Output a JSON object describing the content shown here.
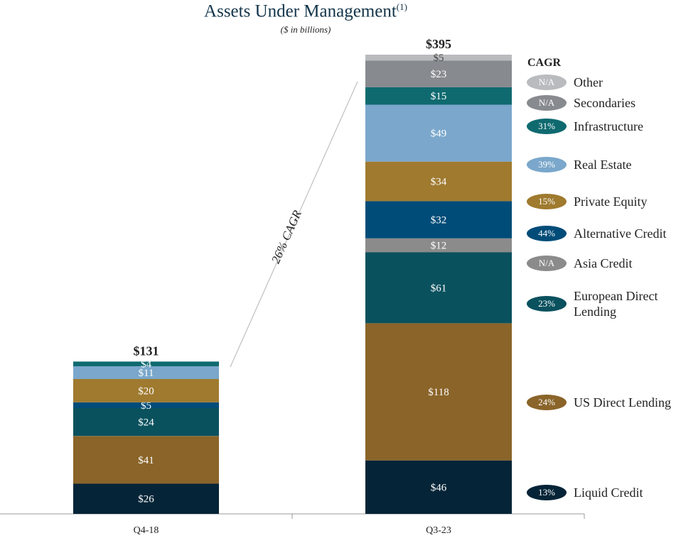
{
  "header": {
    "title": "Assets Under Management",
    "title_sup": "(1)",
    "subtitle": "($ in billions)"
  },
  "legend": {
    "header": "CAGR",
    "items": [
      {
        "name": "Other",
        "cagr": "N/A",
        "color": "#b9bbbe"
      },
      {
        "name": "Secondaries",
        "cagr": "N/A",
        "color": "#878a8f"
      },
      {
        "name": "Infrastructure",
        "cagr": "31%",
        "color": "#0f6a70"
      },
      {
        "name": "Real Estate",
        "cagr": "39%",
        "color": "#7aa7cb"
      },
      {
        "name": "Private Equity",
        "cagr": "15%",
        "color": "#9f7a2f"
      },
      {
        "name": "Alternative Credit",
        "cagr": "44%",
        "color": "#004c78"
      },
      {
        "name": "Asia Credit",
        "cagr": "N/A",
        "color": "#8b8b8b"
      },
      {
        "name": "European Direct Lending",
        "cagr": "23%",
        "color": "#0a515e"
      },
      {
        "name": "US Direct Lending",
        "cagr": "24%",
        "color": "#8a6429"
      },
      {
        "name": "Liquid Credit",
        "cagr": "13%",
        "color": "#052437"
      }
    ]
  },
  "chart_data": {
    "type": "bar",
    "stacked": true,
    "title": "Assets Under Management(1)",
    "subtitle": "($ in billions)",
    "categories": [
      "Q4-18",
      "Q3-23"
    ],
    "totals": [
      "$131",
      "$395"
    ],
    "total_values": [
      131,
      395
    ],
    "cagr_annotation": "26% CAGR",
    "segments": [
      {
        "category": "Q4-18",
        "stack": [
          {
            "series": "Liquid Credit",
            "value": 26,
            "label": "$26"
          },
          {
            "series": "US Direct Lending",
            "value": 41,
            "label": "$41"
          },
          {
            "series": "European Direct Lending",
            "value": 24,
            "label": "$24"
          },
          {
            "series": "Alternative Credit",
            "value": 5,
            "label": "$5"
          },
          {
            "series": "Private Equity",
            "value": 20,
            "label": "$20"
          },
          {
            "series": "Real Estate",
            "value": 11,
            "label": "$11"
          },
          {
            "series": "Infrastructure",
            "value": 4,
            "label": "$4"
          }
        ]
      },
      {
        "category": "Q3-23",
        "stack": [
          {
            "series": "Liquid Credit",
            "value": 46,
            "label": "$46"
          },
          {
            "series": "US Direct Lending",
            "value": 118,
            "label": "$118"
          },
          {
            "series": "European Direct Lending",
            "value": 61,
            "label": "$61"
          },
          {
            "series": "Asia Credit",
            "value": 12,
            "label": "$12"
          },
          {
            "series": "Alternative Credit",
            "value": 32,
            "label": "$32"
          },
          {
            "series": "Private Equity",
            "value": 34,
            "label": "$34"
          },
          {
            "series": "Real Estate",
            "value": 49,
            "label": "$49"
          },
          {
            "series": "Infrastructure",
            "value": 15,
            "label": "$15"
          },
          {
            "series": "Secondaries",
            "value": 23,
            "label": "$23"
          },
          {
            "series": "Other",
            "value": 5,
            "label": "$5"
          }
        ]
      }
    ]
  }
}
